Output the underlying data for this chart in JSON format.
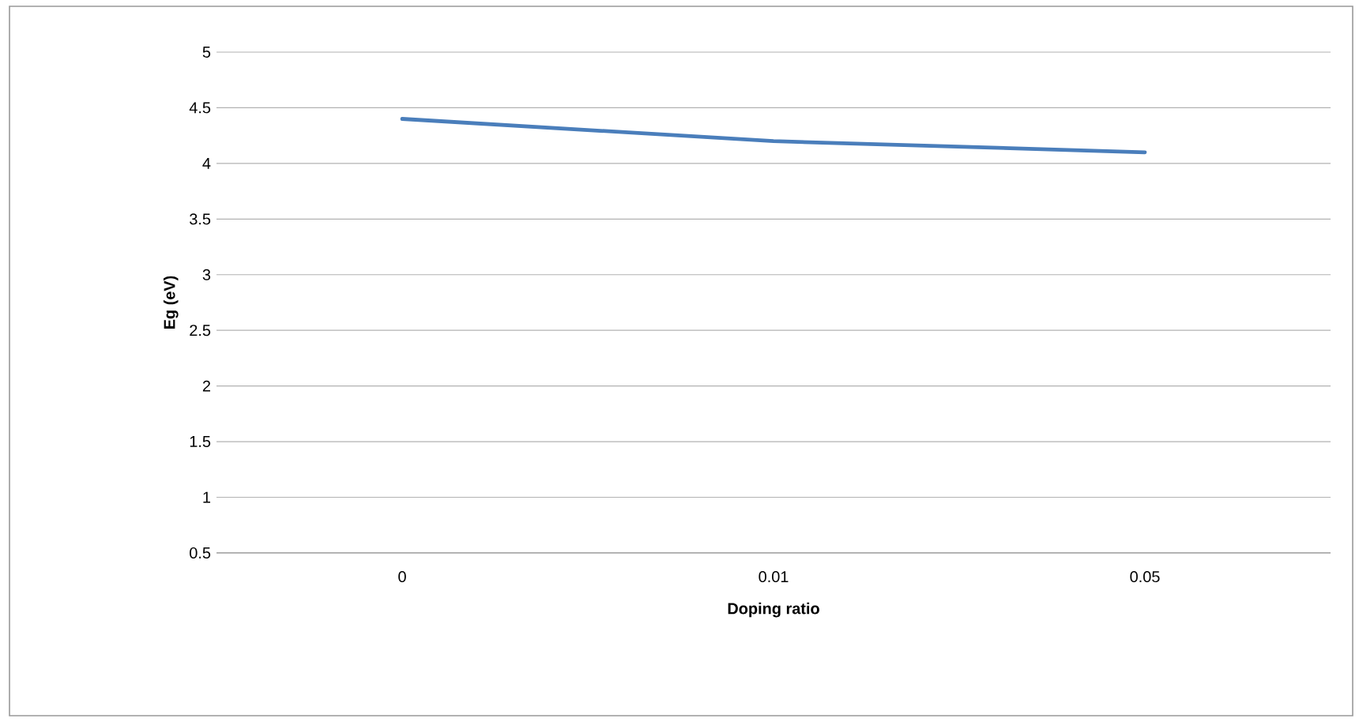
{
  "chart_data": {
    "type": "line",
    "xlabel": "Doping ratio",
    "ylabel": "Eg (eV)",
    "categories": [
      "0",
      "0.01",
      "0.05"
    ],
    "series": [
      {
        "color": "#4a7ebb",
        "values": [
          4.4,
          4.2,
          4.1
        ]
      }
    ],
    "ylim": [
      0.5,
      5
    ],
    "yticks": [
      0.5,
      1,
      1.5,
      2,
      2.5,
      3,
      3.5,
      4,
      4.5,
      5
    ],
    "grid": "y",
    "marker": "none",
    "line_style": "solid"
  }
}
